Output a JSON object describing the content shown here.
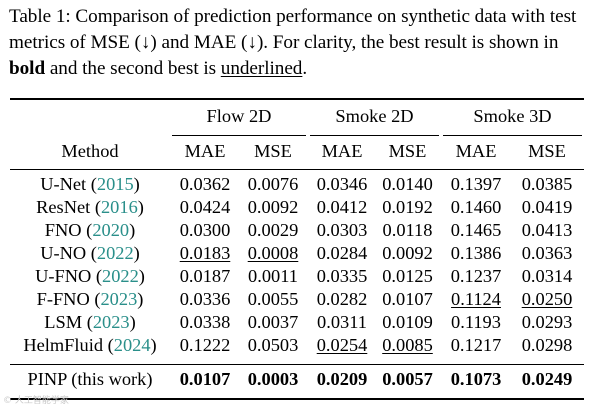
{
  "caption": {
    "part1": "Table 1: Comparison of prediction performance on synthetic data with test metrics of MSE (↓) and MAE (↓). For clarity, the best result is shown in ",
    "bold_word": "bold",
    "part2": " and the second best is ",
    "underline_word": "underlined",
    "part3": "."
  },
  "headers": {
    "groups": [
      "Flow 2D",
      "Smoke 2D",
      "Smoke 3D"
    ],
    "method": "Method",
    "metrics": [
      "MAE",
      "MSE",
      "MAE",
      "MSE",
      "MAE",
      "MSE"
    ]
  },
  "rows": [
    {
      "name": "U-Net",
      "year": "2015",
      "values": [
        "0.0362",
        "0.0076",
        "0.0346",
        "0.0140",
        "0.1397",
        "0.0385"
      ],
      "underline": []
    },
    {
      "name": "ResNet",
      "year": "2016",
      "values": [
        "0.0424",
        "0.0092",
        "0.0412",
        "0.0192",
        "0.1460",
        "0.0419"
      ],
      "underline": []
    },
    {
      "name": "FNO",
      "year": "2020",
      "values": [
        "0.0300",
        "0.0029",
        "0.0303",
        "0.0118",
        "0.1465",
        "0.0413"
      ],
      "underline": []
    },
    {
      "name": "U-NO",
      "year": "2022",
      "values": [
        "0.0183",
        "0.0008",
        "0.0284",
        "0.0092",
        "0.1386",
        "0.0363"
      ],
      "underline": [
        0,
        1
      ]
    },
    {
      "name": "U-FNO",
      "year": "2022",
      "values": [
        "0.0187",
        "0.0011",
        "0.0335",
        "0.0125",
        "0.1237",
        "0.0314"
      ],
      "underline": []
    },
    {
      "name": "F-FNO",
      "year": "2023",
      "values": [
        "0.0336",
        "0.0055",
        "0.0282",
        "0.0107",
        "0.1124",
        "0.0250"
      ],
      "underline": [
        4,
        5
      ]
    },
    {
      "name": "LSM",
      "year": "2023",
      "values": [
        "0.0338",
        "0.0037",
        "0.0311",
        "0.0109",
        "0.1193",
        "0.0293"
      ],
      "underline": []
    },
    {
      "name": "HelmFluid",
      "year": "2024",
      "values": [
        "0.1222",
        "0.0503",
        "0.0254",
        "0.0085",
        "0.1217",
        "0.0298"
      ],
      "underline": [
        2,
        3
      ]
    }
  ],
  "final_row": {
    "name": "PINP (this work)",
    "values": [
      "0.0107",
      "0.0003",
      "0.0209",
      "0.0057",
      "0.1073",
      "0.0249"
    ]
  },
  "watermark": "© 人工智能学家",
  "colors": {
    "citation": "#2a8f8a",
    "text": "#000000"
  }
}
